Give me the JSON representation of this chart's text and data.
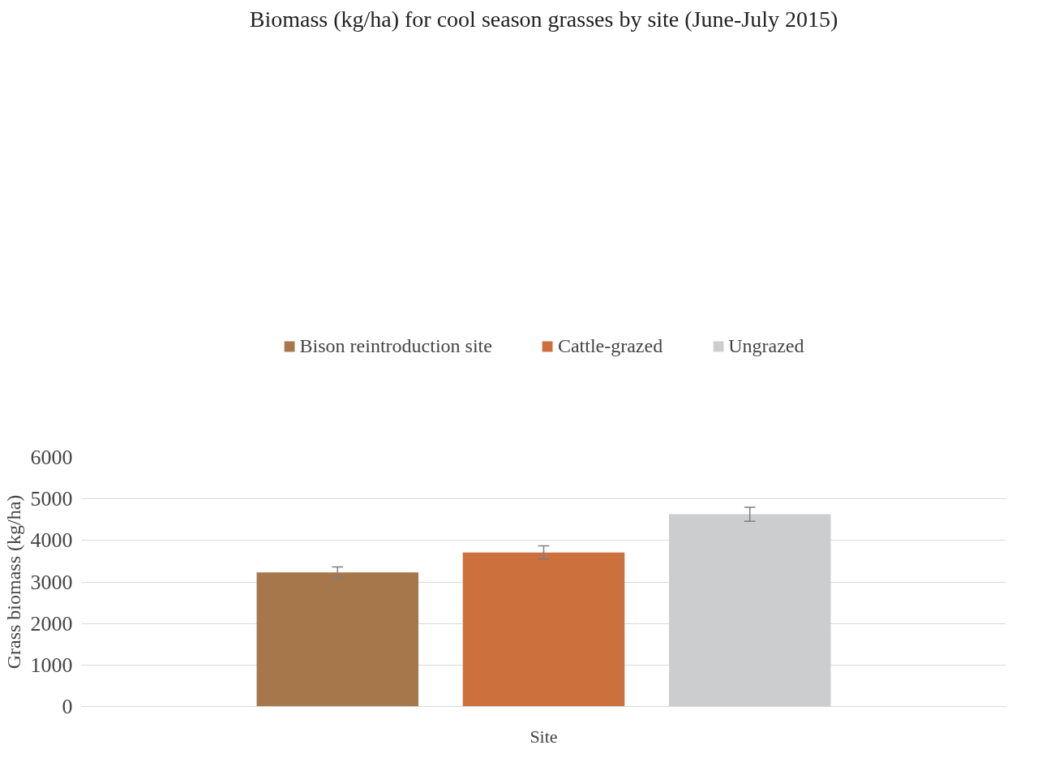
{
  "chart_data": {
    "type": "bar",
    "title": "Biomass (kg/ha) for cool season grasses by site (June-July 2015)",
    "ylabel": "Grass biomass (kg/ha)",
    "categories": [
      "Site"
    ],
    "series": [
      {
        "name": "Bison reintroduction site",
        "color": "#a5774a",
        "values": [
          3230
        ],
        "errors": [
          130
        ]
      },
      {
        "name": "Cattle-grazed",
        "color": "#cc703d",
        "values": [
          3710
        ],
        "errors": [
          160
        ]
      },
      {
        "name": "Ungrazed",
        "color": "#cccdcf",
        "values": [
          4630
        ],
        "errors": [
          170
        ]
      }
    ],
    "ylim": [
      0,
      6000
    ],
    "yticks": [
      0,
      1000,
      2000,
      3000,
      4000,
      5000,
      6000
    ],
    "grid": "y",
    "legend": "top"
  }
}
